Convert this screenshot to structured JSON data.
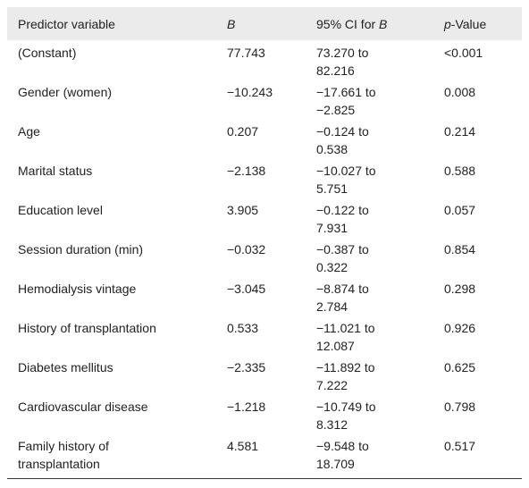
{
  "table": {
    "header": [
      [
        {
          "text": "Predictor variable",
          "italic": false
        }
      ],
      [
        {
          "text": "B",
          "italic": true
        }
      ],
      [
        {
          "text": "95% CI for ",
          "italic": false
        },
        {
          "text": "B",
          "italic": true
        }
      ],
      [
        {
          "text": "p",
          "italic": true
        },
        {
          "text": "-Value",
          "italic": false
        }
      ]
    ],
    "rows": [
      [
        "(Constant)",
        "77.743",
        "73.270 to 82.216",
        "<0.001"
      ],
      [
        "Gender (women)",
        "−10.243",
        "−17.661 to −2.825",
        "0.008"
      ],
      [
        "Age",
        "0.207",
        "−0.124 to 0.538",
        "0.214"
      ],
      [
        "Marital status",
        "−2.138",
        "−10.027 to 5.751",
        "0.588"
      ],
      [
        "Education level",
        "3.905",
        "−0.122 to 7.931",
        "0.057"
      ],
      [
        "Session duration (min)",
        "−0.032",
        "−0.387 to 0.322",
        "0.854"
      ],
      [
        "Hemodialysis vintage",
        "−3.045",
        "−8.874 to 2.784",
        "0.298"
      ],
      [
        "History of transplantation",
        "0.533",
        "−11.021 to 12.087",
        "0.926"
      ],
      [
        "Diabetes mellitus",
        "−2.335",
        "−11.892 to 7.222",
        "0.625"
      ],
      [
        "Cardiovascular disease",
        "−1.218",
        "−10.749 to 8.312",
        "0.798"
      ],
      [
        "Family history of transplantation",
        "4.581",
        "−9.548 to 18.709",
        "0.517"
      ]
    ]
  }
}
